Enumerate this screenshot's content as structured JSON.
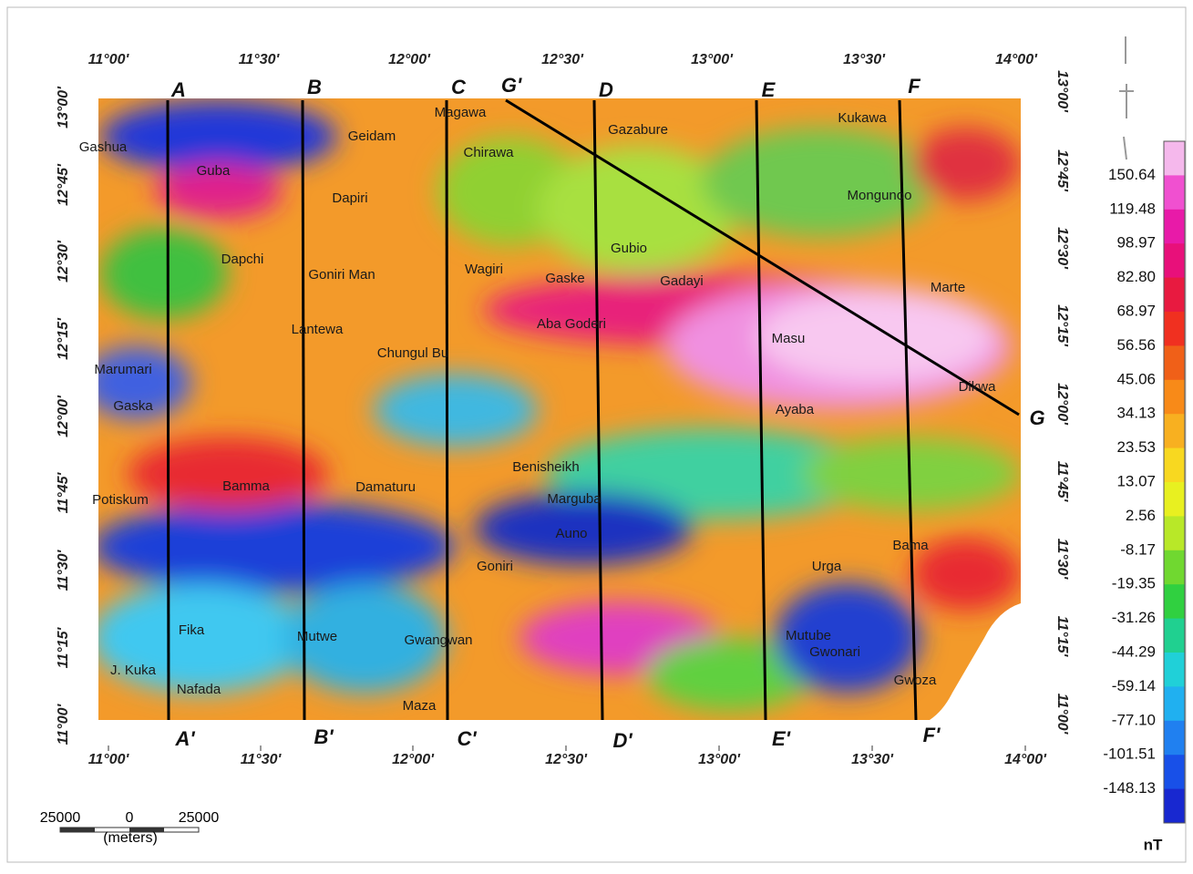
{
  "axes": {
    "top": [
      "11°00'",
      "11°30'",
      "12°00'",
      "12°30'",
      "13°00'",
      "13°30'",
      "14°00'"
    ],
    "bottom": [
      "11°00'",
      "11°30'",
      "12°00'",
      "12°30'",
      "13°00'",
      "13°30'",
      "14°00'"
    ],
    "left": [
      "13°00'",
      "12°45'",
      "12°30'",
      "12°15'",
      "12°00'",
      "11°45'",
      "11°30'",
      "11°15'",
      "11°00'"
    ],
    "right": [
      "13°00'",
      "12°45'",
      "12°30'",
      "12°15'",
      "12°00'",
      "11°45'",
      "11°30'",
      "11°15'",
      "11°00'"
    ]
  },
  "profiles": [
    {
      "start": "A",
      "end": "A'"
    },
    {
      "start": "B",
      "end": "B'"
    },
    {
      "start": "C",
      "end": "C'"
    },
    {
      "start": "D",
      "end": "D'"
    },
    {
      "start": "E",
      "end": "E'"
    },
    {
      "start": "F",
      "end": "F'"
    },
    {
      "start": "G'",
      "end": "G"
    }
  ],
  "places": [
    "Magawa",
    "Geidam",
    "Gashua",
    "Chirawa",
    "Gazabure",
    "Kukawa",
    "Guba",
    "Dapiri",
    "Mongunoo",
    "Gubio",
    "Dapchi",
    "Goniri Man",
    "Wagiri",
    "Gaske",
    "Gadayi",
    "Marte",
    "Aba Goderi",
    "Lantewa",
    "Masu",
    "Chungul Bu",
    "Marumari",
    "Dikwa",
    "Gaska",
    "Ayaba",
    "Benisheikh",
    "Bamma",
    "Damaturu",
    "Potiskum",
    "Marguba",
    "Auno",
    "Bama",
    "Goniri",
    "Urga",
    "Fika",
    "Mutwe",
    "Gwangwan",
    "Mutube",
    "Gwonari",
    "J. Kuka",
    "Nafada",
    "Gwoza",
    "Maza"
  ],
  "legend": {
    "labels": [
      "150.64",
      "119.48",
      "98.97",
      "82.80",
      "68.97",
      "56.56",
      "45.06",
      "34.13",
      "23.53",
      "13.07",
      "2.56",
      "-8.17",
      "-19.35",
      "-31.26",
      "-44.29",
      "-59.14",
      "-77.10",
      "-101.51",
      "-148.13"
    ],
    "unit": "nT"
  },
  "scale_bar": {
    "labels": [
      "25000",
      "0",
      "25000"
    ],
    "unit": "(meters)"
  }
}
